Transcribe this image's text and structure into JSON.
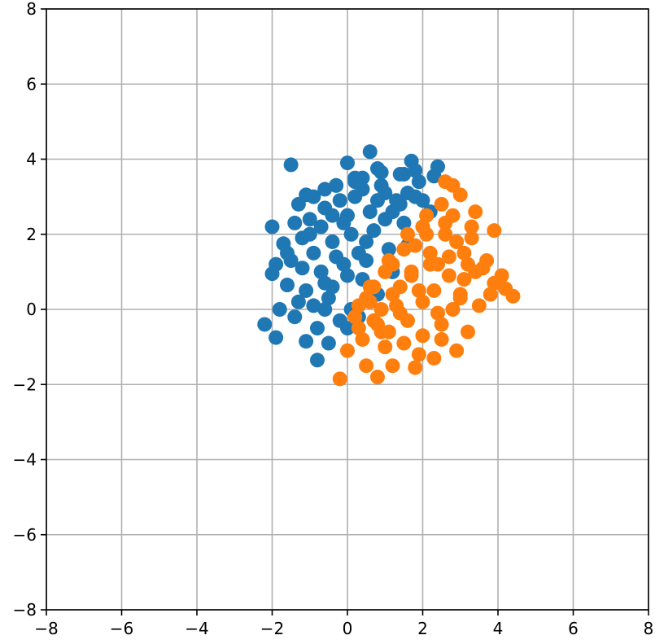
{
  "chart_data": {
    "type": "scatter",
    "title": "",
    "xlabel": "",
    "ylabel": "",
    "xlim": [
      -8,
      8
    ],
    "ylim": [
      -8,
      8
    ],
    "x_ticks": [
      -8,
      -6,
      -4,
      -2,
      0,
      2,
      4,
      6,
      8
    ],
    "y_ticks": [
      -8,
      -6,
      -4,
      -2,
      0,
      2,
      4,
      6,
      8
    ],
    "x_tick_labels": [
      "−8",
      "−6",
      "−4",
      "−2",
      "0",
      "2",
      "4",
      "6",
      "8"
    ],
    "y_tick_labels": [
      "−8",
      "−6",
      "−4",
      "−2",
      "0",
      "2",
      "4",
      "6",
      "8"
    ],
    "grid": true,
    "legend": "none",
    "series": [
      {
        "color": "#1f77b4",
        "x": [
          0.6,
          -1.5,
          0.0,
          1.7,
          2.4,
          0.8,
          0.4,
          1.5,
          -1.1,
          -1.3,
          -0.3,
          -0.6,
          -1.4,
          -2.0,
          -1.7,
          -1.9,
          -1.6,
          -2.0,
          -2.2,
          -1.8,
          -1.9,
          -1.1,
          -0.8,
          -0.5,
          0.0,
          0.3,
          0.8,
          1.2,
          1.6,
          2.0,
          0.2,
          -0.2,
          -0.6,
          -1.0,
          -1.2,
          -0.9,
          -0.4,
          0.0,
          0.4,
          0.9,
          1.3,
          1.8,
          2.2,
          0.6,
          0.1,
          -0.3,
          -0.7,
          -1.1,
          -0.5,
          0.0,
          0.5,
          1.0,
          1.4,
          -0.2,
          -0.8,
          -1.3,
          -0.6,
          -0.1,
          0.3,
          0.7,
          1.1,
          -1.5,
          -1.0,
          -0.4,
          0.2,
          -0.9,
          -0.3,
          1.9,
          2.3,
          2.0,
          1.5,
          0.9,
          -0.6,
          -1.2,
          0.4,
          1.2,
          -0.7,
          0.1,
          0.8,
          1.6,
          -1.4,
          -0.1,
          1.0,
          0.5,
          -0.4,
          -0.9,
          1.4,
          1.8,
          0.2,
          -1.6
        ],
        "y": [
          4.2,
          3.85,
          3.9,
          3.95,
          3.8,
          3.75,
          3.5,
          3.6,
          3.05,
          2.8,
          3.3,
          3.2,
          2.3,
          2.2,
          1.75,
          1.2,
          0.65,
          0.95,
          -0.4,
          0.0,
          -0.75,
          -0.85,
          -1.35,
          -0.9,
          -0.5,
          -0.2,
          0.4,
          1.0,
          1.7,
          2.2,
          3.0,
          2.9,
          2.7,
          2.4,
          1.9,
          1.5,
          1.8,
          2.5,
          3.2,
          3.3,
          2.9,
          3.0,
          2.6,
          2.6,
          2.0,
          1.4,
          1.0,
          0.5,
          0.3,
          0.9,
          1.8,
          2.4,
          2.8,
          -0.3,
          -0.5,
          0.2,
          0.7,
          1.2,
          1.5,
          2.1,
          1.6,
          1.3,
          2.0,
          2.5,
          3.5,
          3.0,
          3.3,
          3.4,
          3.55,
          2.9,
          2.3,
          3.65,
          0.0,
          1.1,
          0.8,
          2.6,
          2.2,
          0.0,
          2.9,
          3.1,
          -0.2,
          2.3,
          3.1,
          1.3,
          0.6,
          0.1,
          3.6,
          3.7,
          3.4,
          1.5
        ],
        "point_size": 18
      },
      {
        "color": "#ff7f0e",
        "x": [
          2.6,
          2.8,
          3.0,
          3.4,
          3.9,
          4.1,
          4.4,
          4.2,
          3.9,
          3.7,
          3.3,
          2.8,
          2.5,
          2.0,
          1.5,
          1.0,
          0.7,
          0.3,
          -0.2,
          0.0,
          0.5,
          0.8,
          1.2,
          1.8,
          2.3,
          2.9,
          3.2,
          3.5,
          3.8,
          3.6,
          3.1,
          2.6,
          2.1,
          1.6,
          1.1,
          0.6,
          0.2,
          0.4,
          0.9,
          1.4,
          1.9,
          2.4,
          2.9,
          3.3,
          2.7,
          2.2,
          1.7,
          1.2,
          0.7,
          0.3,
          1.0,
          1.5,
          2.0,
          2.5,
          3.0,
          3.4,
          2.0,
          1.3,
          0.8,
          0.5,
          1.8,
          2.6,
          3.1,
          2.4,
          1.6,
          1.1,
          2.2,
          2.8,
          1.4,
          0.9,
          2.1,
          2.7,
          3.2,
          1.7,
          1.2,
          2.3,
          0.6,
          1.9,
          2.5,
          3.0
        ],
        "y": [
          3.4,
          3.3,
          3.05,
          2.6,
          2.1,
          0.9,
          0.35,
          0.55,
          0.7,
          1.3,
          1.9,
          2.5,
          2.8,
          2.2,
          1.6,
          1.0,
          0.6,
          0.1,
          -1.85,
          -1.1,
          -1.5,
          -1.8,
          -1.5,
          -1.55,
          -1.3,
          -1.1,
          -0.6,
          0.1,
          0.4,
          1.1,
          1.5,
          2.0,
          2.5,
          2.0,
          1.3,
          0.6,
          -0.2,
          -0.8,
          -0.6,
          -0.1,
          0.5,
          1.2,
          1.8,
          2.2,
          0.9,
          1.5,
          1.0,
          0.4,
          -0.3,
          -0.5,
          -1.0,
          -0.9,
          -0.7,
          -0.4,
          0.3,
          1.0,
          0.2,
          0.1,
          -0.4,
          0.3,
          1.7,
          2.3,
          0.8,
          -0.1,
          -0.3,
          -0.6,
          1.2,
          0.0,
          0.6,
          0.0,
          2.0,
          1.4,
          1.2,
          0.9,
          1.2,
          0.5,
          0.2,
          -1.2,
          -0.8,
          0.4
        ],
        "point_size": 18
      }
    ]
  }
}
